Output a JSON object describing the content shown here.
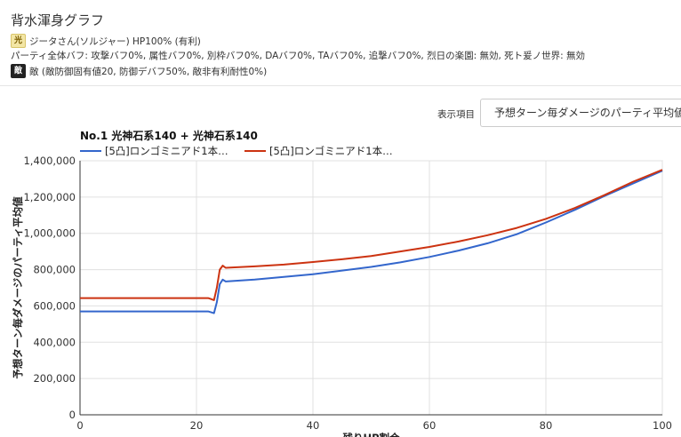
{
  "page": {
    "title": "背水渾身グラフ",
    "light_badge": "光",
    "character_line": "ジータさん(ソルジャー) HP100% (有利)",
    "party_buffs": "パーティ全体バフ: 攻撃バフ0%, 属性バフ0%, 別枠バフ0%, DAバフ0%, TAバフ0%, 追撃バフ0%, 烈日の楽園: 無効, 死ト爰ノ世界: 無効",
    "enemy_badge": "敵",
    "enemy_line": "敵 (敵防御固有値20, 防御デバフ50%, 敵非有利耐性0%)",
    "display_label": "表示項目",
    "display_value": "予想ターン毎ダメージのパーティ平均値"
  },
  "chart_data": {
    "type": "line",
    "title": "No.1 光神石系140 + 光神石系140",
    "xlabel": "残りHP割合",
    "ylabel": "予想ターン毎ダメージのパーティ平均値",
    "xlim": [
      0,
      100
    ],
    "ylim": [
      0,
      1400000
    ],
    "xticks": [
      0,
      20,
      40,
      60,
      80,
      100
    ],
    "yticks": [
      0,
      200000,
      400000,
      600000,
      800000,
      1000000,
      1200000,
      1400000
    ],
    "ytick_labels": [
      "0",
      "200,000",
      "400,000",
      "600,000",
      "800,000",
      "1,000,000",
      "1,200,000",
      "1,400,000"
    ],
    "grid": true,
    "legend": "top-left",
    "series": [
      {
        "name": "[5凸]ロンゴミニアド1本…",
        "color": "#3366cc",
        "x": [
          0,
          5,
          10,
          15,
          20,
          22,
          22.5,
          23,
          23.5,
          24,
          24.5,
          25,
          30,
          35,
          40,
          45,
          50,
          55,
          60,
          65,
          70,
          75,
          80,
          85,
          90,
          95,
          100
        ],
        "y": [
          570000,
          570000,
          570000,
          570000,
          570000,
          570000,
          565000,
          560000,
          620000,
          720000,
          745000,
          735000,
          745000,
          760000,
          775000,
          795000,
          815000,
          840000,
          870000,
          905000,
          945000,
          995000,
          1060000,
          1130000,
          1205000,
          1275000,
          1345000
        ]
      },
      {
        "name": "[5凸]ロンゴミニアド1本…",
        "color": "#cc3311",
        "x": [
          0,
          5,
          10,
          15,
          20,
          22,
          22.5,
          23,
          23.5,
          24,
          24.5,
          25,
          30,
          35,
          40,
          45,
          50,
          55,
          60,
          65,
          70,
          75,
          80,
          85,
          90,
          95,
          100
        ],
        "y": [
          643000,
          643000,
          643000,
          643000,
          643000,
          643000,
          638000,
          632000,
          700000,
          800000,
          822000,
          810000,
          818000,
          828000,
          842000,
          857000,
          875000,
          900000,
          925000,
          955000,
          990000,
          1030000,
          1080000,
          1140000,
          1210000,
          1285000,
          1350000
        ]
      }
    ]
  }
}
